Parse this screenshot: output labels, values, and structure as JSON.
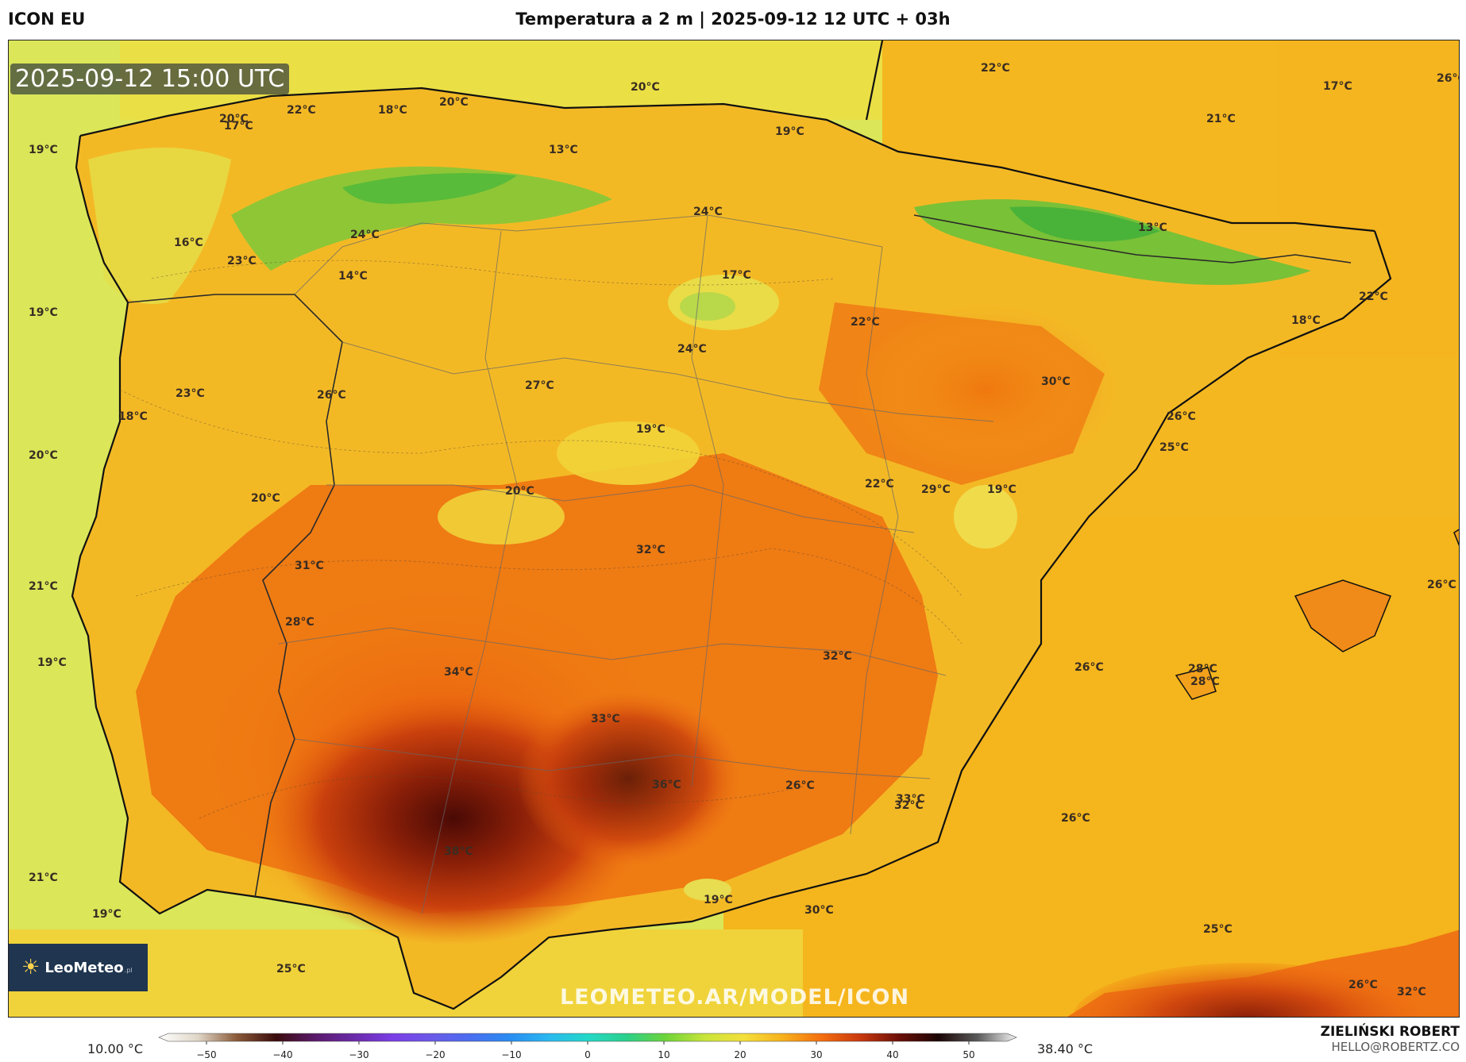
{
  "header": {
    "model": "ICON EU",
    "title": "Temperatura a 2 m | 2025-09-12 12 UTC + 03h"
  },
  "map": {
    "timestamp": "2025-09-12 15:00 UTC",
    "watermark": "LEOMETEO.AR/MODEL/ICON",
    "logo": {
      "brand": "LeoMeteo",
      "suffix": ".pl"
    },
    "labels": [
      {
        "text": "20°C"
      },
      {
        "text": "20°C"
      },
      {
        "text": "22°C"
      },
      {
        "text": "26°C"
      },
      {
        "text": "17°C"
      },
      {
        "text": "18°C"
      },
      {
        "text": "22°C"
      },
      {
        "text": "20°C"
      },
      {
        "text": "17°C"
      },
      {
        "text": "19°C"
      },
      {
        "text": "21°C"
      },
      {
        "text": "19°C"
      },
      {
        "text": "13°C"
      },
      {
        "text": "24°C"
      },
      {
        "text": "24°C"
      },
      {
        "text": "16°C"
      },
      {
        "text": "23°C"
      },
      {
        "text": "14°C"
      },
      {
        "text": "17°C"
      },
      {
        "text": "13°C"
      },
      {
        "text": "19°C"
      },
      {
        "text": "22°C"
      },
      {
        "text": "22°C"
      },
      {
        "text": "18°C"
      },
      {
        "text": "24°C"
      },
      {
        "text": "27°C"
      },
      {
        "text": "23°C"
      },
      {
        "text": "26°C"
      },
      {
        "text": "30°C"
      },
      {
        "text": "18°C"
      },
      {
        "text": "19°C"
      },
      {
        "text": "26°C"
      },
      {
        "text": "20°C"
      },
      {
        "text": "25°C"
      },
      {
        "text": "20°C"
      },
      {
        "text": "20°C"
      },
      {
        "text": "22°C"
      },
      {
        "text": "29°C"
      },
      {
        "text": "19°C"
      },
      {
        "text": "32°C"
      },
      {
        "text": "31°C"
      },
      {
        "text": "21°C"
      },
      {
        "text": "28°C"
      },
      {
        "text": "26°C"
      },
      {
        "text": "28°C"
      },
      {
        "text": "32°C"
      },
      {
        "text": "26°C"
      },
      {
        "text": "34°C"
      },
      {
        "text": "19°C"
      },
      {
        "text": "28°C"
      },
      {
        "text": "33°C"
      },
      {
        "text": "32°C"
      },
      {
        "text": "36°C"
      },
      {
        "text": "26°C"
      },
      {
        "text": "33°C"
      },
      {
        "text": "26°C"
      },
      {
        "text": "38°C"
      },
      {
        "text": "21°C"
      },
      {
        "text": "19°C"
      },
      {
        "text": "19°C"
      },
      {
        "text": "30°C"
      },
      {
        "text": "25°C"
      },
      {
        "text": "25°C"
      },
      {
        "text": "26°C"
      },
      {
        "text": "32°C"
      }
    ]
  },
  "legend": {
    "min_label": "10.00 °C",
    "max_label": "38.40 °C",
    "ticks": [
      "−50",
      "−40",
      "−30",
      "−20",
      "−10",
      "0",
      "10",
      "20",
      "30",
      "40",
      "50"
    ],
    "range": [
      -55,
      55
    ],
    "stops": [
      {
        "v": -55,
        "c": "#ffffff"
      },
      {
        "v": -50,
        "c": "#e0d7c8"
      },
      {
        "v": -45,
        "c": "#8b5a3a"
      },
      {
        "v": -40,
        "c": "#3a0c0c"
      },
      {
        "v": -35,
        "c": "#5a1a6a"
      },
      {
        "v": -30,
        "c": "#6a2aa8"
      },
      {
        "v": -25,
        "c": "#7b3ee6"
      },
      {
        "v": -20,
        "c": "#6a5ae8"
      },
      {
        "v": -15,
        "c": "#4a6ef0"
      },
      {
        "v": -10,
        "c": "#2a8cf2"
      },
      {
        "v": -5,
        "c": "#2ab8f0"
      },
      {
        "v": 0,
        "c": "#24d8c8"
      },
      {
        "v": 5,
        "c": "#2ad08a"
      },
      {
        "v": 10,
        "c": "#6ed43a"
      },
      {
        "v": 15,
        "c": "#c8e43a"
      },
      {
        "v": 20,
        "c": "#f4e03c"
      },
      {
        "v": 25,
        "c": "#f7b11d"
      },
      {
        "v": 30,
        "c": "#f46e0f"
      },
      {
        "v": 35,
        "c": "#c8380f"
      },
      {
        "v": 40,
        "c": "#6a0f08"
      },
      {
        "v": 45,
        "c": "#1a0505"
      },
      {
        "v": 50,
        "c": "#5a5a5a"
      },
      {
        "v": 55,
        "c": "#f4f4f4"
      }
    ]
  },
  "author": {
    "name": "ZIELIŃSKI ROBERT",
    "email": "HELLO@ROBERTZ.CO"
  }
}
